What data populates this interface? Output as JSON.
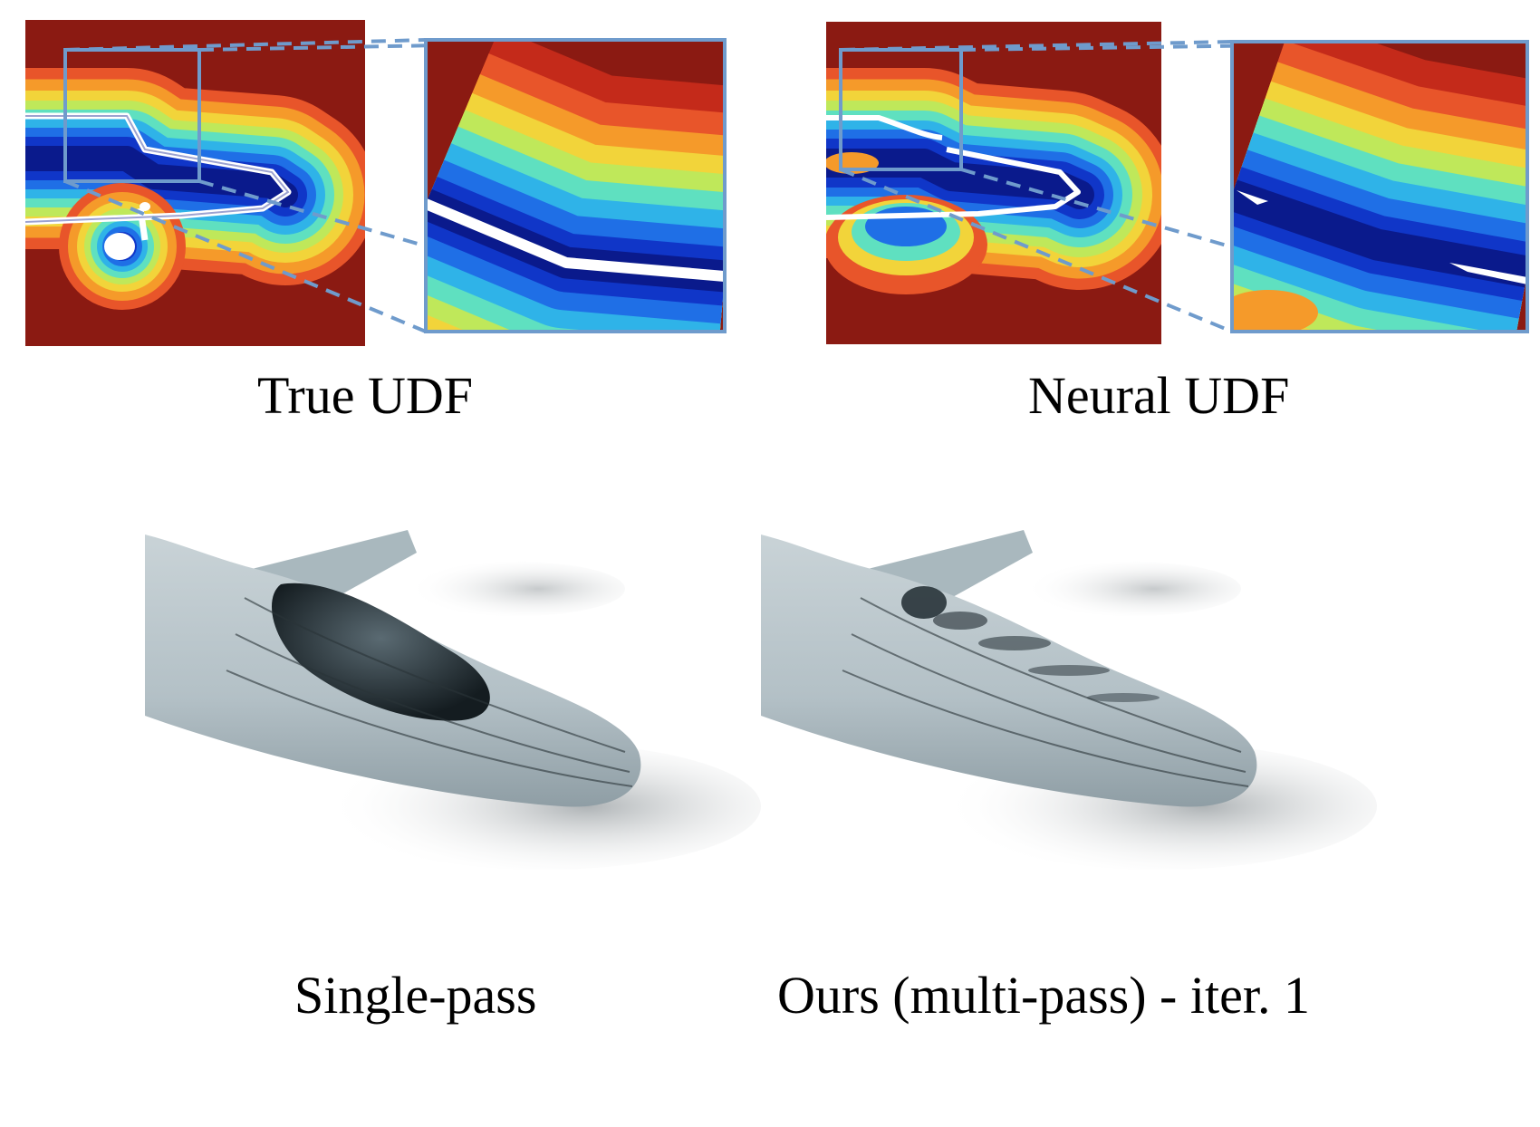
{
  "figure": {
    "captions": {
      "true_udf": "True UDF",
      "neural_udf": "Neural UDF",
      "single_pass": "Single-pass",
      "multi_pass": "Ours (multi-pass) - iter. 1"
    },
    "colors": {
      "far_field": "#8b1a12",
      "inset_frame": "#6f9bcc",
      "surface_line": "#ffffff",
      "mesh": "#b5c2c8",
      "mesh_shadow": "#8f9ea5",
      "hole": "#1f2a30",
      "colormap": [
        "#0a1a8c",
        "#1036c8",
        "#1f6fe6",
        "#2fb3e8",
        "#5fe0c0",
        "#bfe85a",
        "#f2d43a",
        "#f59a2a",
        "#e8552a",
        "#c42a1a",
        "#8b1a12"
      ]
    },
    "colormap_name": "jet",
    "panels": [
      "true-udf-field",
      "neural-udf-field",
      "single-pass-render",
      "multi-pass-render"
    ]
  }
}
